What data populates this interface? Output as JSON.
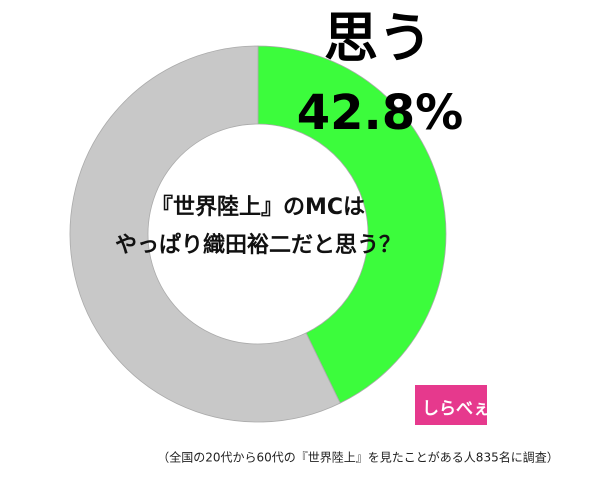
{
  "chart_data": {
    "type": "donut",
    "title": [
      "『世界陸上』のMCは",
      "やっぱり織田裕二だと思う？"
    ],
    "categories": [
      "思う",
      null
    ],
    "values": [
      42.8,
      57.2
    ],
    "value_labels": [
      "42.8%",
      null
    ],
    "colors": [
      "#3cfc3c",
      "#c8c8c8"
    ],
    "note": "（全国の20代から60代の『世界陸上』を見たことがある人835名に調査）",
    "logo": "しらべぇ"
  }
}
